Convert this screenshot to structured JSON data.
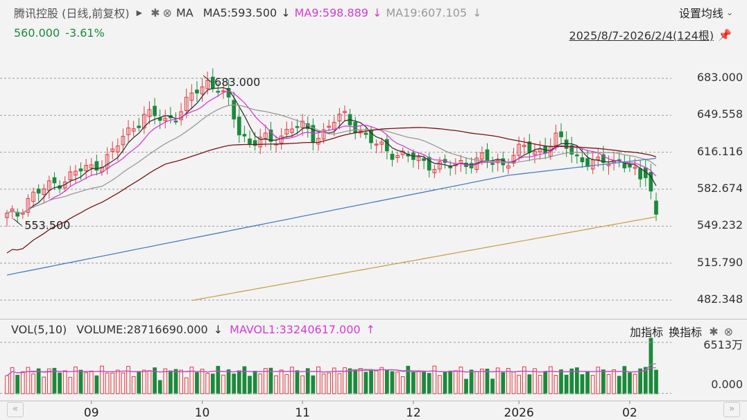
{
  "header": {
    "stock_name": "腾讯控股 (日线,前复权)",
    "ma_label": "MA",
    "ma5": "MA5:593.500",
    "ma9": "MA9:598.889",
    "ma19": "MA19:607.105",
    "settings_label": "设置均线",
    "price": "560.000",
    "change": "-3.61%",
    "date_range": "2025/8/7-2026/2/4(124根)"
  },
  "volume_panel": {
    "vol_label": "VOL(5,10)",
    "volume": "VOLUME:28716690.000",
    "mavol1": "MAVOL1:33240617.000",
    "add_indicator": "加指标",
    "switch_indicator": "换指标",
    "vol_max_label": "6513万",
    "vol_min_label": "0.000"
  },
  "colors": {
    "up": "#e0393e",
    "down": "#1a8a3a",
    "ma5": "#333333",
    "ma9": "#d63ad6",
    "ma19": "#999999",
    "ma60": "#7a1010",
    "ma120": "#4a7fc1",
    "ma250": "#c9a44c"
  },
  "chart_data": {
    "type": "candlestick",
    "y_ticks": [
      "683.000",
      "649.558",
      "616.116",
      "582.674",
      "549.232",
      "515.790",
      "482.348"
    ],
    "ylim": [
      460,
      695
    ],
    "x_labels": [
      {
        "label": "09",
        "index": 16
      },
      {
        "label": "10",
        "index": 37
      },
      {
        "label": "11",
        "index": 56
      },
      {
        "label": "12",
        "index": 77
      },
      {
        "label": "2026",
        "index": 97
      },
      {
        "label": "02",
        "index": 118
      }
    ],
    "annotations": [
      {
        "text": "683.000",
        "index": 38,
        "value": 683.0
      },
      {
        "text": "553.500",
        "index": 2,
        "value": 553.5
      }
    ],
    "candle_count": 124,
    "close_anchors": [
      [
        0,
        558
      ],
      [
        2,
        560
      ],
      [
        4,
        575
      ],
      [
        6,
        580
      ],
      [
        8,
        585
      ],
      [
        10,
        590
      ],
      [
        12,
        595
      ],
      [
        14,
        600
      ],
      [
        16,
        602
      ],
      [
        18,
        608
      ],
      [
        20,
        615
      ],
      [
        22,
        630
      ],
      [
        24,
        640
      ],
      [
        26,
        650
      ],
      [
        28,
        648
      ],
      [
        30,
        645
      ],
      [
        32,
        650
      ],
      [
        34,
        660
      ],
      [
        36,
        672
      ],
      [
        38,
        680
      ],
      [
        40,
        675
      ],
      [
        42,
        660
      ],
      [
        44,
        635
      ],
      [
        46,
        625
      ],
      [
        48,
        628
      ],
      [
        50,
        625
      ],
      [
        52,
        632
      ],
      [
        54,
        640
      ],
      [
        56,
        638
      ],
      [
        58,
        630
      ],
      [
        60,
        635
      ],
      [
        62,
        645
      ],
      [
        64,
        648
      ],
      [
        66,
        640
      ],
      [
        68,
        630
      ],
      [
        70,
        622
      ],
      [
        72,
        618
      ],
      [
        74,
        615
      ],
      [
        76,
        612
      ],
      [
        78,
        608
      ],
      [
        80,
        606
      ],
      [
        82,
        604
      ],
      [
        84,
        603
      ],
      [
        86,
        606
      ],
      [
        88,
        608
      ],
      [
        90,
        610
      ],
      [
        92,
        607
      ],
      [
        94,
        606
      ],
      [
        96,
        614
      ],
      [
        98,
        620
      ],
      [
        100,
        617
      ],
      [
        102,
        620
      ],
      [
        104,
        628
      ],
      [
        106,
        622
      ],
      [
        108,
        612
      ],
      [
        110,
        607
      ],
      [
        112,
        605
      ],
      [
        114,
        610
      ],
      [
        116,
        608
      ],
      [
        118,
        602
      ],
      [
        120,
        590
      ],
      [
        121,
        582
      ],
      [
        122,
        566
      ],
      [
        123,
        560
      ]
    ]
  }
}
